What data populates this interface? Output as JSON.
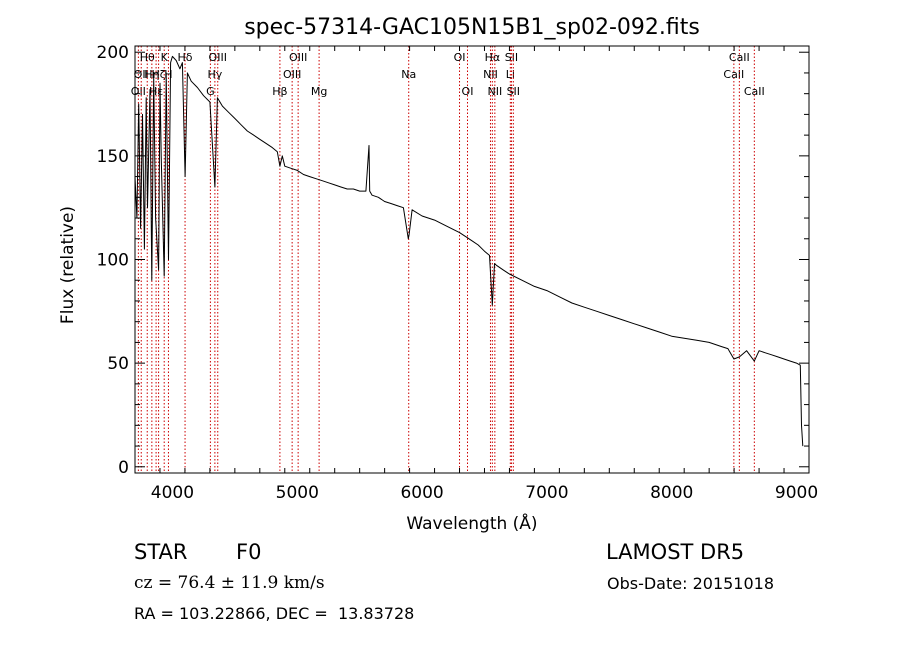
{
  "chart_data": {
    "type": "line",
    "title": "spec-57314-GAC105N15B1_sp02-092.fits",
    "xlabel": "Wavelength (Å)",
    "ylabel": "Flux (relative)",
    "xlim": [
      3700,
      9100
    ],
    "ylim": [
      -3,
      203
    ],
    "x_ticks": [
      4000,
      5000,
      6000,
      7000,
      8000,
      9000
    ],
    "x_tick_labels": [
      "4000",
      "5000",
      "6000",
      "7000",
      "8000",
      "9000"
    ],
    "y_ticks": [
      0,
      50,
      100,
      150,
      200
    ],
    "y_tick_labels": [
      "0",
      "50",
      "100",
      "150",
      "200"
    ],
    "grid": false,
    "line_color": "#000000",
    "marker_color": "#cc0000",
    "series": [
      {
        "x": [
          3700,
          3715,
          3730,
          3745,
          3760,
          3775,
          3790,
          3800,
          3820,
          3835,
          3850,
          3865,
          3889,
          3900,
          3910,
          3934,
          3950,
          3968,
          3985,
          4000,
          4030,
          4060,
          4080,
          4101,
          4120,
          4150,
          4200,
          4250,
          4300,
          4340,
          4360,
          4400,
          4450,
          4500,
          4550,
          4600,
          4650,
          4700,
          4750,
          4800,
          4840,
          4861,
          4880,
          4900,
          4950,
          5000,
          5050,
          5100,
          5150,
          5200,
          5250,
          5300,
          5350,
          5400,
          5450,
          5500,
          5550,
          5575,
          5580,
          5600,
          5650,
          5700,
          5750,
          5800,
          5850,
          5890,
          5896,
          5920,
          6000,
          6100,
          6200,
          6300,
          6350,
          6400,
          6450,
          6500,
          6540,
          6563,
          6580,
          6600,
          6650,
          6700,
          6800,
          6900,
          7000,
          7100,
          7200,
          7300,
          7400,
          7500,
          7600,
          7700,
          7800,
          7900,
          8000,
          8100,
          8200,
          8300,
          8400,
          8450,
          8498,
          8542,
          8600,
          8662,
          8700,
          8750,
          8800,
          8850,
          8900,
          8950,
          9000,
          9030,
          9040,
          9050
        ],
        "y": [
          140,
          120,
          175,
          115,
          170,
          105,
          178,
          125,
          182,
          90,
          188,
          120,
          95,
          185,
          150,
          92,
          190,
          100,
          195,
          198,
          196,
          192,
          195,
          140,
          190,
          186,
          183,
          179,
          176,
          135,
          178,
          174,
          171,
          168,
          165,
          162,
          160,
          158,
          156,
          154,
          152,
          145,
          150,
          145,
          144,
          143,
          141,
          140,
          139,
          138,
          137,
          136,
          135,
          134,
          134,
          133,
          133,
          155,
          133,
          131,
          130,
          128,
          127,
          126,
          125,
          110,
          112,
          124,
          121,
          119,
          116,
          113,
          111,
          109,
          107,
          104,
          102,
          78,
          98,
          97,
          95,
          93,
          90,
          87,
          85,
          82,
          79,
          77,
          75,
          73,
          71,
          69,
          67,
          65,
          63,
          62,
          61,
          60,
          58,
          57,
          52,
          53,
          56,
          51,
          56,
          55,
          54,
          53,
          52,
          51,
          50,
          49,
          20,
          10
        ]
      }
    ],
    "line_markers": [
      {
        "wavelength": 3727,
        "label": "OII",
        "row": 3
      },
      {
        "wavelength": 3750,
        "label": "OII",
        "row": 2
      },
      {
        "wavelength": 3798,
        "label": "Hθ",
        "row": 1
      },
      {
        "wavelength": 3835,
        "label": "Hη",
        "row": 2
      },
      {
        "wavelength": 3869,
        "label": "Hε",
        "row": 3
      },
      {
        "wavelength": 3889,
        "label": "Hζ",
        "row": 2
      },
      {
        "wavelength": 3934,
        "label": "K",
        "row": 1
      },
      {
        "wavelength": 3968,
        "label": "H",
        "row": 2
      },
      {
        "wavelength": 4101,
        "label": "Hδ",
        "row": 1
      },
      {
        "wavelength": 4304,
        "label": "G",
        "row": 3
      },
      {
        "wavelength": 4340,
        "label": "Hγ",
        "row": 2
      },
      {
        "wavelength": 4363,
        "label": "OIII",
        "row": 1
      },
      {
        "wavelength": 4861,
        "label": "Hβ",
        "row": 3
      },
      {
        "wavelength": 4959,
        "label": "OIII",
        "row": 2
      },
      {
        "wavelength": 5007,
        "label": "OIII",
        "row": 1
      },
      {
        "wavelength": 5175,
        "label": "Mg",
        "row": 3
      },
      {
        "wavelength": 5893,
        "label": "Na",
        "row": 2
      },
      {
        "wavelength": 6300,
        "label": "OI",
        "row": 1
      },
      {
        "wavelength": 6364,
        "label": "OI",
        "row": 3
      },
      {
        "wavelength": 6548,
        "label": "NII",
        "row": 2
      },
      {
        "wavelength": 6563,
        "label": "Hα",
        "row": 1
      },
      {
        "wavelength": 6583,
        "label": "NII",
        "row": 3
      },
      {
        "wavelength": 6707,
        "label": "Li",
        "row": 2
      },
      {
        "wavelength": 6716,
        "label": "SII",
        "row": 1
      },
      {
        "wavelength": 6731,
        "label": "SII",
        "row": 3
      },
      {
        "wavelength": 8498,
        "label": "CaII",
        "row": 2
      },
      {
        "wavelength": 8542,
        "label": "CaII",
        "row": 1
      },
      {
        "wavelength": 8662,
        "label": "CaII",
        "row": 3
      }
    ]
  },
  "info": {
    "object_class": "STAR",
    "subclass": "F0",
    "survey": "LAMOST DR5",
    "cz": "cz = 76.4 ± 11.9 km/s",
    "obs_date": "Obs-Date: 20151018",
    "coords": "RA = 103.22866, DEC =  13.83728"
  }
}
